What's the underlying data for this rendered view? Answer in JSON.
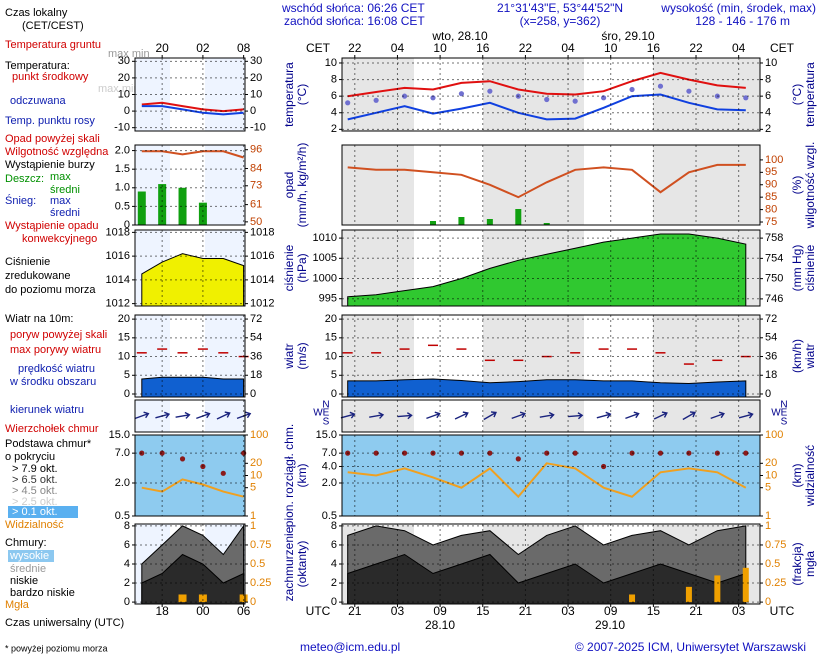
{
  "header": {
    "sunrise": "wschód słońca: 06:26 CET",
    "sunset": "zachód słońca: 16:08 CET",
    "coords": "21°31'43\"E, 53°44'52\"N",
    "grid_point": "(x=258, y=362)",
    "height_title": "wysokość (min, środek, max)",
    "height_values": "128 - 146 - 176 m"
  },
  "footer": {
    "email": "meteo@icm.edu.pl",
    "copyright": "© 2007-2025 ICM, Uniwersytet Warszawski"
  },
  "legend": [
    "Czas lokalny",
    "(CET/CEST)",
    "Temperatura gruntu",
    "max min",
    "Temperatura:",
    "punkt środkowy",
    "max min",
    "odczuwana",
    "Temp. punktu rosy",
    "Opad powyżej skali",
    "Wilgotność względna",
    "Wystąpienie burzy",
    "Deszcz:",
    "max",
    "średni",
    "Śnieg:",
    "max",
    "średni",
    "Wystąpienie opadu",
    "konwekcyjnego",
    "Ciśnienie",
    "zredukowane",
    "do poziomu morza",
    "Wiatr na 10m:",
    "poryw powyżej skali",
    "max porywy wiatru",
    "prędkość wiatru",
    "w środku obszaru",
    "kierunek wiatru",
    "Wierzchołek chmur",
    "Podstawa chmur*",
    "o pokryciu",
    "> 7.9 okt.",
    "> 6.5 okt.",
    "> 4.5 okt.",
    "> 2.5 okt.",
    "> 0.1 okt.",
    "Widzialność",
    "Chmury:",
    "wysokie",
    "średnie",
    "niskie",
    "bardzo niskie",
    "Mgła",
    "Czas uniwersalny (UTC)",
    "* powyżej poziomu morza"
  ],
  "chart_data": [
    {
      "type": "line",
      "xlim": [
        20.2,
        79
      ],
      "x": [
        21,
        25,
        29,
        33,
        37,
        41,
        45,
        49,
        53,
        57,
        61,
        65,
        69,
        73,
        77
      ],
      "xticks": [
        22,
        {
          "value": 28,
          "label": "04"
        },
        {
          "value": 34,
          "label": "10"
        },
        {
          "value": 40,
          "label": "16"
        },
        {
          "value": 46,
          "label": "22"
        },
        {
          "value": 52,
          "label": "04"
        },
        {
          "value": 58,
          "label": "10"
        },
        {
          "value": 64,
          "label": "16"
        },
        {
          "value": 70,
          "label": "22"
        },
        {
          "value": 76,
          "label": "04"
        }
      ],
      "x_unit": "CET",
      "dates": [
        "wto, 28.10",
        "śro, 29.10"
      ],
      "ylim": [
        1.8,
        10.6
      ],
      "yticks": [
        10,
        8,
        6,
        4,
        2
      ],
      "y2lim": [
        1.8,
        10.6
      ],
      "y2ticks": [
        10,
        8,
        6,
        4,
        2
      ],
      "ylabel": [
        "temperatura",
        "(°C)"
      ],
      "y2label": [
        "(°C)",
        "temperatura"
      ],
      "series": [
        {
          "type": "line",
          "color": "#e01010",
          "values": [
            6.0,
            6.5,
            7.0,
            6.8,
            7.6,
            7.8,
            6.8,
            6.3,
            6.2,
            6.6,
            7.8,
            8.8,
            8.0,
            7.3,
            7.0
          ]
        },
        {
          "type": "line",
          "color": "#1040e0",
          "values": [
            3.2,
            4.0,
            4.8,
            3.9,
            4.5,
            5.2,
            4.0,
            3.2,
            3.3,
            4.6,
            6.0,
            6.2,
            5.2,
            4.4,
            4.3
          ]
        },
        {
          "type": "dots",
          "color": "#7070d0",
          "values": [
            5.2,
            5.5,
            6.0,
            5.8,
            6.3,
            6.6,
            6.0,
            5.6,
            5.4,
            5.8,
            6.8,
            7.2,
            6.6,
            6.0,
            5.8
          ]
        }
      ]
    },
    {
      "type": "line",
      "xlim": [
        20.2,
        79
      ],
      "x": [
        21,
        25,
        29,
        33,
        37,
        41,
        45,
        49,
        53,
        57,
        61,
        65,
        69,
        73,
        77
      ],
      "ylim": [
        0,
        2
      ],
      "y2lim": [
        73.8,
        106
      ],
      "y2ticks": [
        100,
        95,
        90,
        85,
        80,
        75
      ],
      "y2color": "#c04000",
      "ylabel": [
        "opad",
        "(mm/h, kg/m²/h)"
      ],
      "y2label": [
        "(%)",
        "wilgotność wzgl."
      ],
      "series": [
        {
          "type": "bars",
          "color": "#10a010",
          "values": [
            0,
            0,
            0,
            0.1,
            0.2,
            0.15,
            0.4,
            0.05,
            0,
            0,
            0,
            0,
            0,
            0,
            0
          ]
        },
        {
          "type": "line",
          "axis": "y2",
          "color": "#d05020",
          "values": [
            97,
            96,
            96,
            95,
            94,
            90,
            85,
            91,
            96,
            97,
            96,
            87,
            95,
            98,
            98
          ]
        }
      ]
    },
    {
      "type": "line",
      "xlim": [
        20.2,
        79
      ],
      "x": [
        21,
        25,
        29,
        33,
        37,
        41,
        45,
        49,
        53,
        57,
        61,
        65,
        69,
        73,
        77
      ],
      "ylim": [
        993.2,
        1012
      ],
      "yticks": [
        1010,
        1005,
        1000,
        995
      ],
      "y2lim": [
        744.6,
        759.6
      ],
      "y2ticks": [
        758,
        754,
        750,
        746
      ],
      "ylabel": [
        "ciśnienie",
        "(hPa)"
      ],
      "y2label": [
        "(mm Hg)",
        "ciśnienie"
      ],
      "series": [
        {
          "type": "area",
          "color": "#30c830",
          "values": [
            995.5,
            996,
            997,
            998,
            1000,
            1002.5,
            1004.5,
            1006,
            1007.5,
            1009,
            1010,
            1011,
            1011,
            1010,
            1008.5
          ]
        }
      ]
    },
    {
      "type": "line",
      "xlim": [
        20.2,
        79
      ],
      "x": [
        21,
        25,
        29,
        33,
        37,
        41,
        45,
        49,
        53,
        57,
        61,
        65,
        69,
        73,
        77
      ],
      "ylim": [
        -0.8,
        21.1
      ],
      "yticks": [
        20,
        15,
        10,
        5,
        0
      ],
      "y2lim": [
        -2.9,
        75.9
      ],
      "y2ticks": [
        72,
        54,
        36,
        18,
        0
      ],
      "ylabel": [
        "wiatr",
        "(m/s)"
      ],
      "y2label": [
        "(km/h)",
        "wiatr"
      ],
      "series": [
        {
          "type": "area",
          "color": "#1060d0",
          "values": [
            3.5,
            3.5,
            3.8,
            4,
            3.6,
            3,
            3.3,
            3.8,
            3.8,
            3.5,
            3.5,
            3,
            2.8,
            3.2,
            3.5
          ]
        },
        {
          "type": "dashes",
          "color": "#c00000",
          "values": [
            11,
            11,
            12,
            13,
            12,
            9,
            9,
            10,
            11,
            12,
            12,
            11,
            8,
            9,
            10
          ]
        }
      ]
    },
    {
      "type": "vector",
      "xlim": [
        20.2,
        79
      ],
      "x": [
        21,
        25,
        29,
        33,
        37,
        41,
        45,
        49,
        53,
        57,
        61,
        65,
        69,
        73,
        77
      ],
      "compass": [
        "N",
        "W",
        "E",
        "S"
      ],
      "series": [
        {
          "type": "arrows",
          "color": "#1a237e",
          "values": [
            255,
            260,
            265,
            250,
            245,
            240,
            250,
            260,
            265,
            255,
            250,
            245,
            240,
            250,
            255
          ]
        }
      ]
    },
    {
      "type": "line",
      "xlim": [
        20.2,
        79
      ],
      "x": [
        21,
        25,
        29,
        33,
        37,
        41,
        45,
        49,
        53,
        57,
        61,
        65,
        69,
        73,
        77
      ],
      "ylog": true,
      "ylim": [
        0.5,
        15
      ],
      "yticks": [
        {
          "value": 15,
          "label": "15.0"
        },
        {
          "value": 7,
          "label": "7.0"
        },
        {
          "value": 4,
          "label": "4.0"
        },
        {
          "value": 2,
          "label": "2.0"
        },
        0.5
      ],
      "y2log": true,
      "y2lim": [
        1,
        100
      ],
      "y2ticks": [
        100,
        20,
        10,
        5,
        1
      ],
      "y2color": "#e08000",
      "ylabel": [
        "pion. rozciągł. chm.",
        "(km)"
      ],
      "y2label": [
        "(km)",
        "widzialność"
      ],
      "series": [
        {
          "type": "dots",
          "color": "#8b1a1a",
          "values": [
            7,
            7,
            7,
            7,
            7,
            7,
            5.5,
            7,
            7,
            4,
            7,
            7,
            7,
            7,
            7
          ]
        },
        {
          "type": "line",
          "axis": "y2",
          "color": "#f0a020",
          "values": [
            12,
            10,
            15,
            9,
            5,
            15,
            3,
            20,
            15,
            5,
            3,
            12,
            15,
            12,
            5
          ]
        }
      ]
    },
    {
      "type": "line",
      "xlim": [
        20.2,
        79
      ],
      "x": [
        21,
        25,
        29,
        33,
        37,
        41,
        45,
        49,
        53,
        57,
        61,
        65,
        69,
        73,
        77
      ],
      "xticks": [
        {
          "value": 22,
          "label": "21"
        },
        {
          "value": 28,
          "label": "03"
        },
        {
          "value": 34,
          "label": "09"
        },
        {
          "value": 40,
          "label": "15"
        },
        {
          "value": 46,
          "label": "21"
        },
        {
          "value": 52,
          "label": "03"
        },
        {
          "value": 58,
          "label": "09"
        },
        {
          "value": 64,
          "label": "15"
        },
        {
          "value": 70,
          "label": "21"
        },
        {
          "value": 76,
          "label": "03"
        }
      ],
      "x_unit": "UTC",
      "dates": [
        "28.10",
        "29.10"
      ],
      "ylim": [
        -0.2,
        8.2
      ],
      "yticks": [
        8,
        6,
        4,
        2,
        0
      ],
      "y2lim": [
        -0.025,
        1.025
      ],
      "y2ticks": [
        1,
        0.75,
        0.5,
        0.25,
        0
      ],
      "y2color": "#e08000",
      "ylabel": [
        "zachmurzenie",
        "(oktanty)"
      ],
      "y2label": [
        "(frakcja)",
        "mgła"
      ],
      "series": [
        {
          "type": "area",
          "color": "#6a6a6a",
          "values": [
            7,
            8,
            7.5,
            6,
            7,
            7.5,
            5,
            7,
            8,
            6,
            7,
            7.5,
            6,
            7.5,
            8
          ]
        },
        {
          "type": "area",
          "color": "#2a2a2a",
          "values": [
            3,
            4,
            5,
            3,
            4,
            5,
            2,
            3,
            4,
            2,
            3,
            4,
            3,
            2,
            3
          ]
        },
        {
          "type": "bars",
          "axis": "y2",
          "color": "#f0a000",
          "values": [
            0,
            0,
            0,
            0,
            0,
            0,
            0,
            0,
            0,
            0,
            0.1,
            0,
            0.2,
            0.35,
            0.45
          ]
        }
      ]
    },
    {
      "type": "line",
      "xlim": [
        16,
        32.2
      ],
      "x": [
        17,
        20,
        23,
        26,
        29,
        32
      ],
      "xticks": [
        20,
        {
          "value": 26,
          "label": "02"
        },
        {
          "value": 32,
          "label": "08"
        }
      ],
      "ylim": [
        -12,
        32
      ],
      "yticks": [
        30,
        20,
        10,
        0,
        -10
      ],
      "y2lim": [
        -12,
        32
      ],
      "y2ticks": [
        30,
        20,
        10,
        0,
        -10
      ],
      "series": [
        {
          "type": "line",
          "color": "#e01010",
          "values": [
            4,
            5,
            3,
            1,
            0,
            1
          ]
        },
        {
          "type": "line",
          "color": "#1040e0",
          "values": [
            3,
            3,
            1,
            -1,
            -2,
            -1
          ]
        }
      ]
    },
    {
      "type": "line",
      "xlim": [
        16,
        32.2
      ],
      "x": [
        17,
        20,
        23,
        26,
        29,
        32
      ],
      "ylim": [
        0,
        2.15
      ],
      "yticks": [
        {
          "value": 2,
          "label": "2.0"
        },
        1.5,
        {
          "value": 1,
          "label": "1.0"
        },
        0.5,
        0
      ],
      "y2lim": [
        48,
        99
      ],
      "y2ticks": [
        96,
        84,
        73,
        61,
        50
      ],
      "y2color": "#c04000",
      "series": [
        {
          "type": "bars",
          "color": "#10a010",
          "values": [
            0.9,
            1.1,
            1.0,
            0.6,
            0,
            0
          ]
        },
        {
          "type": "line",
          "axis": "y2",
          "color": "#d05020",
          "values": [
            95,
            95,
            93,
            95,
            95,
            91
          ]
        }
      ]
    },
    {
      "type": "line",
      "xlim": [
        16,
        32.2
      ],
      "x": [
        17,
        20,
        23,
        26,
        29,
        32
      ],
      "ylim": [
        1011.8,
        1018.2
      ],
      "yticks": [
        1018,
        1016,
        1014,
        1012
      ],
      "y2lim": [
        1011.8,
        1018.2
      ],
      "y2ticks": [
        1018,
        1016,
        1014,
        1012
      ],
      "series": [
        {
          "type": "area",
          "color": "#f0f000",
          "values": [
            1014.5,
            1015.5,
            1016.2,
            1015.8,
            1015.8,
            1015.2
          ]
        }
      ]
    },
    {
      "type": "line",
      "xlim": [
        16,
        32.2
      ],
      "x": [
        17,
        20,
        23,
        26,
        29,
        32
      ],
      "ylim": [
        -0.8,
        21.1
      ],
      "yticks": [
        20,
        15,
        10,
        5,
        0
      ],
      "y2lim": [
        -2.9,
        75.9
      ],
      "y2ticks": [
        72,
        54,
        36,
        18,
        0
      ],
      "series": [
        {
          "type": "area",
          "color": "#1060d0",
          "values": [
            4,
            4.5,
            4.5,
            4.5,
            4,
            4
          ]
        },
        {
          "type": "dashes",
          "color": "#c00000",
          "values": [
            11,
            12,
            11,
            12,
            11,
            10
          ]
        }
      ]
    },
    {
      "type": "vector",
      "xlim": [
        16,
        32.2
      ],
      "x": [
        17,
        20,
        23,
        26,
        29,
        32
      ],
      "series": [
        {
          "type": "arrows",
          "color": "#1a237e",
          "values": [
            250,
            255,
            260,
            250,
            245,
            250
          ]
        }
      ]
    },
    {
      "type": "line",
      "xlim": [
        16,
        32.2
      ],
      "x": [
        17,
        20,
        23,
        26,
        29,
        32
      ],
      "ylog": true,
      "ylim": [
        0.5,
        15
      ],
      "yticks": [
        {
          "value": 15,
          "label": "15.0"
        },
        {
          "value": 7,
          "label": "7.0"
        },
        {
          "value": 2,
          "label": "2.0"
        },
        0.5
      ],
      "y2log": true,
      "y2lim": [
        1,
        100
      ],
      "y2ticks": [
        100,
        20,
        10,
        5,
        1
      ],
      "y2color": "#e08000",
      "series": [
        {
          "type": "dots",
          "color": "#8b1a1a",
          "values": [
            7,
            7,
            5.5,
            4,
            3,
            7
          ]
        },
        {
          "type": "line",
          "axis": "y2",
          "color": "#f0a020",
          "values": [
            5,
            4,
            8,
            6,
            4,
            3
          ]
        }
      ]
    },
    {
      "type": "line",
      "xlim": [
        16,
        32.2
      ],
      "x": [
        17,
        20,
        23,
        26,
        29,
        32
      ],
      "xticks": [
        {
          "value": 20,
          "label": "18"
        },
        {
          "value": 26,
          "label": "00"
        },
        {
          "value": 32,
          "label": "06"
        }
      ],
      "ylim": [
        -0.2,
        8.2
      ],
      "yticks": [
        8,
        6,
        4,
        2,
        0
      ],
      "y2lim": [
        -0.025,
        1.025
      ],
      "y2ticks": [
        1,
        0.75,
        0.5,
        0.25,
        0
      ],
      "y2color": "#e08000",
      "series": [
        {
          "type": "area",
          "color": "#6a6a6a",
          "values": [
            4,
            6,
            8,
            7,
            5,
            8
          ]
        },
        {
          "type": "area",
          "color": "#2a2a2a",
          "values": [
            2,
            3,
            5,
            4,
            2,
            3
          ]
        },
        {
          "type": "bars",
          "axis": "y2",
          "color": "#f0a000",
          "values": [
            0,
            0,
            0.1,
            0.1,
            0,
            0.1
          ]
        }
      ]
    }
  ]
}
